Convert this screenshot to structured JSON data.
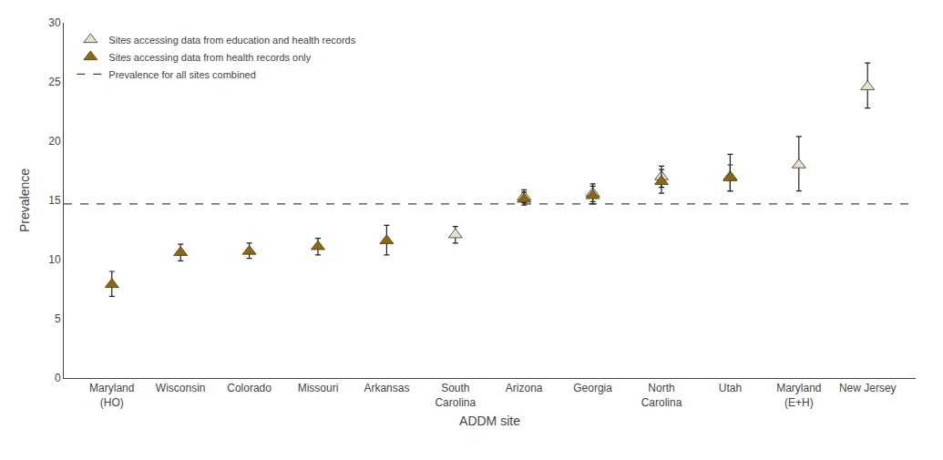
{
  "chart_data": {
    "type": "scatter",
    "xlabel": "ADDM site",
    "ylabel": "Prevalence",
    "categories": [
      "Maryland\n(HO)",
      "Wisconsin",
      "Colorado",
      "Missouri",
      "Arkansas",
      "South\nCarolina",
      "Arizona",
      "Georgia",
      "North\nCarolina",
      "Utah",
      "Maryland\n(E+H)",
      "New Jersey"
    ],
    "series": [
      {
        "name": "Sites accessing data from education and health records",
        "color": "#E8E0C8",
        "marker": "triangle-up",
        "values": [
          null,
          null,
          null,
          null,
          null,
          12.1,
          15.3,
          15.6,
          17.0,
          17.0,
          18.0,
          24.6
        ],
        "lower": [
          null,
          null,
          null,
          null,
          null,
          11.4,
          14.8,
          14.9,
          16.1,
          15.8,
          15.8,
          22.8
        ],
        "upper": [
          null,
          null,
          null,
          null,
          null,
          12.8,
          15.9,
          16.4,
          17.9,
          18.9,
          20.4,
          26.6
        ]
      },
      {
        "name": "Sites accessing data from health records only",
        "color": "#8B6914",
        "marker": "triangle-up",
        "values": [
          7.9,
          10.6,
          10.7,
          11.1,
          11.6,
          null,
          15.1,
          15.4,
          16.6,
          16.9,
          null,
          null
        ],
        "lower": [
          6.9,
          9.9,
          10.1,
          10.4,
          10.4,
          null,
          14.6,
          14.7,
          15.6,
          15.8,
          null,
          null
        ],
        "upper": [
          9.0,
          11.3,
          11.4,
          11.8,
          12.9,
          null,
          15.7,
          16.2,
          17.6,
          18.0,
          null,
          null
        ]
      }
    ],
    "reference_line": {
      "name": "Prevalence for all sites combined",
      "value": 14.7,
      "color": "#444444",
      "line_style": "dashed"
    },
    "ylim": [
      0,
      30
    ],
    "yticks": [
      0,
      5,
      10,
      15,
      20,
      25,
      30
    ],
    "grid": false,
    "legend": "upper left"
  }
}
